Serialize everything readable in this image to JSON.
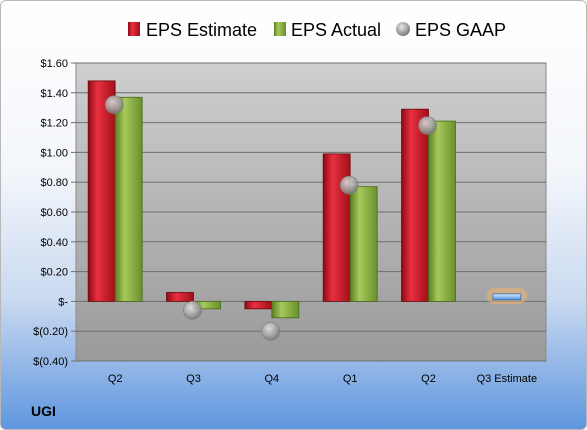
{
  "company": "UGI",
  "colors": {
    "estimate": "#c8141e",
    "actual": "#7ea43a",
    "gaap": "#a6a6a6",
    "forecast": "#7fb3e8",
    "forecast_glow": "#f4b26a"
  },
  "chart_data": {
    "type": "bar",
    "categories": [
      "Q2",
      "Q3",
      "Q4",
      "Q1",
      "Q2",
      "Q3 Estimate"
    ],
    "series": [
      {
        "name": "EPS Estimate",
        "type": "bar",
        "values": [
          1.48,
          0.06,
          -0.05,
          0.99,
          1.29,
          null
        ]
      },
      {
        "name": "EPS Actual",
        "type": "bar",
        "values": [
          1.37,
          -0.05,
          -0.11,
          0.77,
          1.21,
          null
        ]
      },
      {
        "name": "EPS GAAP",
        "type": "scatter",
        "values": [
          1.32,
          -0.06,
          -0.2,
          0.78,
          1.18,
          null
        ]
      }
    ],
    "forecast": {
      "category": "Q3 Estimate",
      "value": 0.03
    },
    "yticks": [
      "$1.60",
      "$1.40",
      "$1.20",
      "$1.00",
      "$0.80",
      "$0.60",
      "$0.40",
      "$0.20",
      "$-",
      "$(0.20)",
      "$(0.40)"
    ],
    "ylim": [
      -0.4,
      1.6
    ],
    "grid": true,
    "legend": "top"
  }
}
